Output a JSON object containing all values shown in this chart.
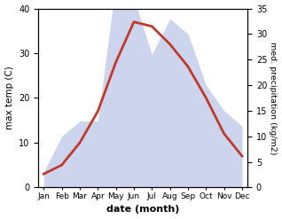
{
  "months": [
    "Jan",
    "Feb",
    "Mar",
    "Apr",
    "May",
    "Jun",
    "Jul",
    "Aug",
    "Sep",
    "Oct",
    "Nov",
    "Dec"
  ],
  "max_temp": [
    3,
    5,
    10,
    17,
    28,
    37,
    36,
    32,
    27,
    20,
    12,
    7
  ],
  "precipitation": [
    3,
    10,
    13,
    13,
    40,
    37,
    26,
    33,
    30,
    20,
    15,
    12
  ],
  "temp_color": "#c0392b",
  "precip_fill_color": "#b8c4e8",
  "temp_ylim": [
    0,
    40
  ],
  "precip_ylim": [
    0,
    35
  ],
  "temp_yticks": [
    0,
    10,
    20,
    30,
    40
  ],
  "precip_yticks": [
    0,
    5,
    10,
    15,
    20,
    25,
    30,
    35
  ],
  "ylabel_left": "max temp (C)",
  "ylabel_right": "med. precipitation (kg/m2)",
  "xlabel": "date (month)"
}
